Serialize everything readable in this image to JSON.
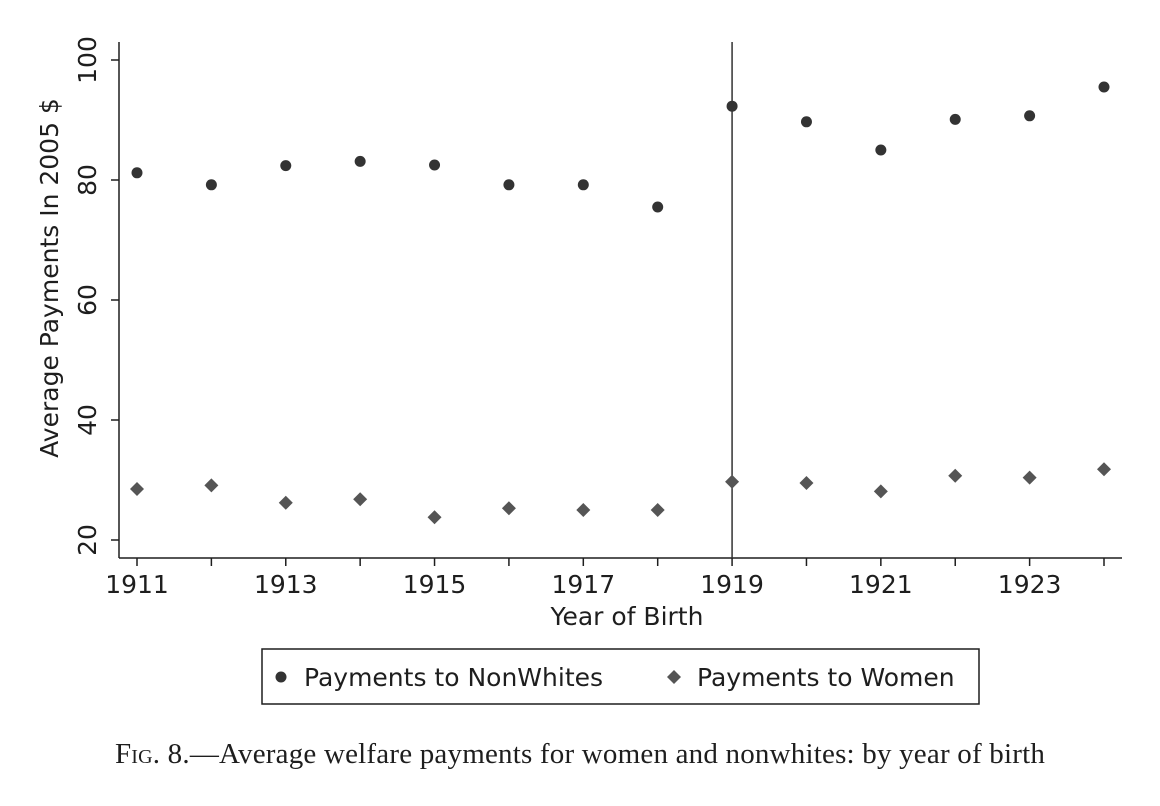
{
  "chart_data": {
    "type": "scatter",
    "xlabel": "Year of Birth",
    "ylabel": "Average Payments In 2005 $",
    "x_ticks": [
      1911,
      1913,
      1915,
      1917,
      1919,
      1921,
      1923
    ],
    "y_ticks": [
      20,
      40,
      60,
      80,
      100
    ],
    "xlim": [
      1911,
      1924
    ],
    "ylim": [
      20,
      100
    ],
    "grid": false,
    "vertical_line_x": 1919,
    "legend_position": "bottom",
    "x": [
      1911,
      1912,
      1913,
      1914,
      1915,
      1916,
      1917,
      1918,
      1919,
      1920,
      1921,
      1922,
      1923,
      1924
    ],
    "series": [
      {
        "name": "Payments to NonWhites",
        "marker": "circle",
        "color": "#333333",
        "values": [
          81.2,
          79.2,
          82.4,
          83.1,
          82.5,
          79.2,
          79.2,
          75.5,
          92.3,
          89.7,
          85.0,
          90.1,
          90.7,
          95.5
        ]
      },
      {
        "name": "Payments to Women",
        "marker": "diamond",
        "color": "#555555",
        "values": [
          28.5,
          29.1,
          26.2,
          26.8,
          23.8,
          25.3,
          25.0,
          25.0,
          29.7,
          29.5,
          28.1,
          30.7,
          30.4,
          31.8
        ]
      }
    ]
  },
  "caption": {
    "fig_number": "Fig. 8.",
    "text": "—Average welfare payments for women and nonwhites: by year of birth"
  }
}
